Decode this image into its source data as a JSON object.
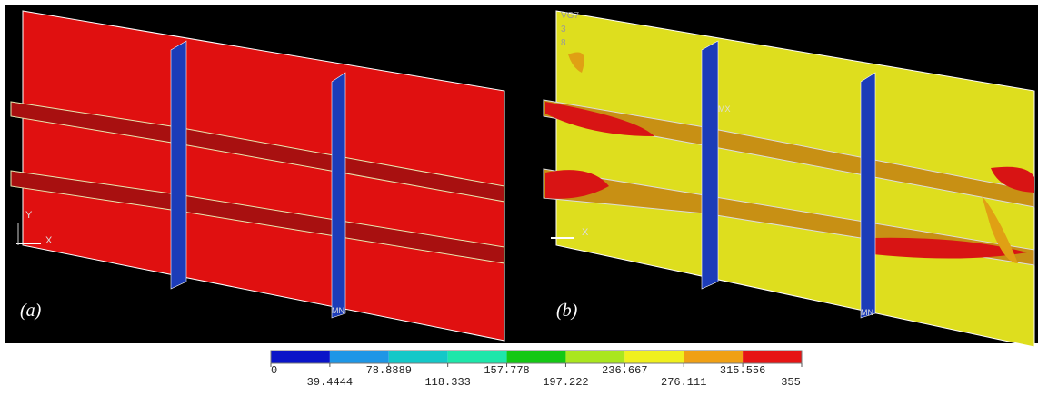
{
  "panels": [
    {
      "label": "(a)",
      "annotations": [
        "Y",
        "X",
        "MN"
      ]
    },
    {
      "label": "(b)",
      "annotations": [
        "VG7",
        "3",
        "8",
        "MX",
        "X",
        "MN"
      ]
    }
  ],
  "colorbar": {
    "ticks": [
      0,
      39.4444,
      78.8889,
      118.333,
      157.778,
      197.222,
      236.667,
      276.111,
      315.556,
      355
    ],
    "colors": [
      "#0a14c8",
      "#1e96e6",
      "#14c8c8",
      "#1ee6aa",
      "#14c814",
      "#aae61e",
      "#f0f01e",
      "#f0a014",
      "#e61414"
    ]
  }
}
